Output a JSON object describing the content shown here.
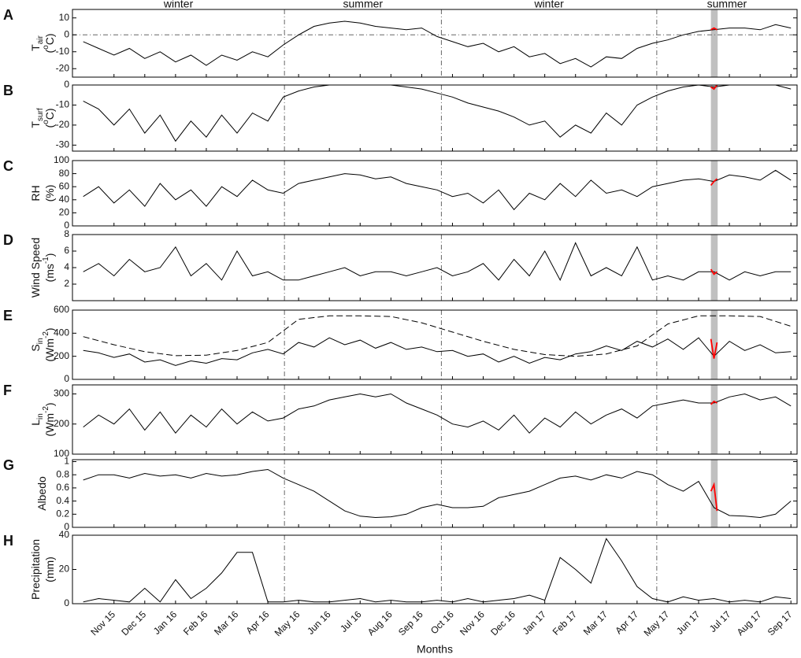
{
  "chart_data": {
    "type": "line",
    "xlabel": "Months",
    "xlim": [
      -0.35,
      23.2
    ],
    "xticks": [
      {
        "value": 1,
        "label": "Nov 15"
      },
      {
        "value": 2,
        "label": "Dec 15"
      },
      {
        "value": 3,
        "label": "Jan 16"
      },
      {
        "value": 4,
        "label": "Feb 16"
      },
      {
        "value": 5,
        "label": "Mar 16"
      },
      {
        "value": 6,
        "label": "Apr 16"
      },
      {
        "value": 7,
        "label": "May 16"
      },
      {
        "value": 8,
        "label": "Jun 16"
      },
      {
        "value": 9,
        "label": "Jul 16"
      },
      {
        "value": 10,
        "label": "Aug 16"
      },
      {
        "value": 11,
        "label": "Sep 16"
      },
      {
        "value": 12,
        "label": "Oct 16"
      },
      {
        "value": 13,
        "label": "Nov 16"
      },
      {
        "value": 14,
        "label": "Dec 16"
      },
      {
        "value": 15,
        "label": "Jan 17"
      },
      {
        "value": 16,
        "label": "Feb 17"
      },
      {
        "value": 17,
        "label": "Mar 17"
      },
      {
        "value": 18,
        "label": "Apr 17"
      },
      {
        "value": 19,
        "label": "May 17"
      },
      {
        "value": 20,
        "label": "Jun 17"
      },
      {
        "value": 21,
        "label": "Jul 17"
      },
      {
        "value": 22,
        "label": "Aug 17"
      },
      {
        "value": 23,
        "label": "Sep 17"
      }
    ],
    "season_lines": [
      6.54,
      11.64,
      18.64
    ],
    "seasons": [
      "winter",
      "summer",
      "winter",
      "summer"
    ],
    "highlight_x": [
      20.4,
      20.62
    ],
    "highlight_color": "#c0c0c0",
    "x": [
      0,
      0.5,
      1,
      1.5,
      2,
      2.5,
      3,
      3.5,
      4,
      4.5,
      5,
      5.5,
      6,
      6.5,
      7,
      7.5,
      8,
      8.5,
      9,
      9.5,
      10,
      10.5,
      11,
      11.5,
      12,
      12.5,
      13,
      13.5,
      14,
      14.5,
      15,
      15.5,
      16,
      16.5,
      17,
      17.5,
      18,
      18.5,
      19,
      19.5,
      20,
      20.5,
      21,
      21.5,
      22,
      22.5,
      23
    ],
    "panels": [
      {
        "label": "A",
        "ylabel": [
          {
            "text": "T"
          },
          {
            "text": "air",
            "pos": "sub"
          }
        ],
        "unit": [
          {
            "text": "("
          },
          {
            "text": "o",
            "pos": "sup"
          },
          {
            "text": "C)"
          }
        ],
        "ylim": [
          -25,
          15
        ],
        "yticks": [
          -20,
          -10,
          0,
          10
        ],
        "zero_line": true,
        "series": [
          {
            "color": "#000000",
            "values": [
              -4,
              -8,
              -12,
              -8,
              -14,
              -10,
              -16,
              -12,
              -18,
              -12,
              -15,
              -10,
              -13,
              -6,
              0,
              5,
              7,
              8,
              7,
              5,
              4,
              3,
              4,
              -1,
              -4,
              -7,
              -5,
              -10,
              -7,
              -13,
              -11,
              -17,
              -14,
              -19,
              -13,
              -14,
              -8,
              -5,
              -3,
              0,
              2,
              3,
              4,
              4,
              3,
              6,
              4
            ]
          },
          {
            "color": "#ff0000",
            "x": [
              20.4,
              20.5,
              20.6
            ],
            "values": [
              3,
              4,
              3
            ]
          }
        ]
      },
      {
        "label": "B",
        "ylabel": [
          {
            "text": "T"
          },
          {
            "text": "surf",
            "pos": "sub"
          }
        ],
        "unit": [
          {
            "text": "("
          },
          {
            "text": "o",
            "pos": "sup"
          },
          {
            "text": "C)"
          }
        ],
        "ylim": [
          -33,
          0
        ],
        "yticks": [
          -30,
          -20,
          -10,
          0
        ],
        "series": [
          {
            "color": "#000000",
            "values": [
              -8,
              -12,
              -20,
              -12,
              -24,
              -15,
              -28,
              -18,
              -26,
              -15,
              -24,
              -14,
              -18,
              -6,
              -3,
              -1,
              0,
              0,
              0,
              0,
              0,
              -1,
              -2,
              -4,
              -6,
              -9,
              -11,
              -13,
              -16,
              -20,
              -18,
              -26,
              -20,
              -24,
              -14,
              -20,
              -10,
              -6,
              -3,
              -1,
              0,
              -1,
              0,
              0,
              0,
              0,
              -2
            ]
          },
          {
            "color": "#ff0000",
            "x": [
              20.4,
              20.5,
              20.6
            ],
            "values": [
              -1,
              -2,
              0
            ]
          }
        ]
      },
      {
        "label": "C",
        "ylabel": [
          {
            "text": "RH"
          }
        ],
        "unit": [
          {
            "text": "(%)"
          }
        ],
        "ylim": [
          0,
          100
        ],
        "yticks": [
          0,
          20,
          40,
          60,
          80,
          100
        ],
        "series": [
          {
            "color": "#000000",
            "values": [
              45,
              60,
              35,
              55,
              30,
              65,
              40,
              55,
              30,
              60,
              45,
              70,
              55,
              50,
              65,
              70,
              75,
              80,
              78,
              72,
              75,
              65,
              60,
              55,
              45,
              50,
              35,
              55,
              25,
              50,
              40,
              65,
              45,
              70,
              50,
              55,
              45,
              60,
              65,
              70,
              72,
              68,
              78,
              75,
              70,
              85,
              70
            ]
          },
          {
            "color": "#ff0000",
            "x": [
              20.4,
              20.5,
              20.6
            ],
            "values": [
              62,
              68,
              72
            ]
          }
        ]
      },
      {
        "label": "D",
        "ylabel": [
          {
            "text": "Wind Speed"
          }
        ],
        "unit": [
          {
            "text": "(ms"
          },
          {
            "text": "-1",
            "pos": "sup"
          },
          {
            "text": ")"
          }
        ],
        "ylim": [
          0,
          8
        ],
        "yticks": [
          2,
          4,
          6,
          8
        ],
        "series": [
          {
            "color": "#000000",
            "values": [
              3.5,
              4.5,
              3,
              5,
              3.5,
              4,
              6.5,
              3,
              4.5,
              2.5,
              6,
              3,
              3.5,
              2.5,
              2.5,
              3,
              3.5,
              4,
              3,
              3.5,
              3.5,
              3,
              3.5,
              4,
              3,
              3.5,
              4.5,
              2.5,
              5,
              3,
              6,
              2.5,
              7,
              3,
              4,
              3,
              6.5,
              2.5,
              3,
              2.5,
              3.5,
              3.5,
              2.5,
              3.5,
              3,
              3.5,
              3.5
            ]
          },
          {
            "color": "#ff0000",
            "x": [
              20.4,
              20.5,
              20.6
            ],
            "values": [
              3.8,
              3.2,
              3.5
            ]
          }
        ]
      },
      {
        "label": "E",
        "ylabel": [
          {
            "text": "S"
          },
          {
            "text": "in",
            "pos": "sub"
          }
        ],
        "unit": [
          {
            "text": "(Wm"
          },
          {
            "text": "-2",
            "pos": "sup"
          },
          {
            "text": ")"
          }
        ],
        "ylim": [
          0,
          600
        ],
        "yticks": [
          0,
          200,
          400,
          600
        ],
        "series": [
          {
            "color": "#000000",
            "values": [
              250,
              230,
              190,
              220,
              150,
              170,
              120,
              160,
              140,
              180,
              170,
              230,
              260,
              220,
              320,
              280,
              360,
              300,
              340,
              270,
              320,
              260,
              280,
              240,
              250,
              200,
              220,
              150,
              200,
              140,
              190,
              170,
              220,
              240,
              290,
              250,
              330,
              280,
              350,
              260,
              360,
              200,
              330,
              250,
              300,
              230,
              240
            ]
          },
          {
            "color": "#000000",
            "dash": true,
            "x": [
              0,
              1,
              2,
              3,
              4,
              5,
              6,
              7,
              8,
              9,
              10,
              11,
              12,
              13,
              14,
              15,
              16,
              17,
              18,
              19,
              20,
              21,
              22,
              23
            ],
            "values": [
              370,
              300,
              240,
              205,
              210,
              250,
              320,
              520,
              550,
              550,
              545,
              490,
              410,
              330,
              260,
              215,
              200,
              220,
              290,
              480,
              550,
              550,
              545,
              460
            ]
          },
          {
            "color": "#ff0000",
            "x": [
              20.4,
              20.5,
              20.6
            ],
            "values": [
              350,
              180,
              320
            ]
          }
        ]
      },
      {
        "label": "F",
        "ylabel": [
          {
            "text": "L"
          },
          {
            "text": "in",
            "pos": "sub"
          }
        ],
        "unit": [
          {
            "text": "(Wm"
          },
          {
            "text": "-2",
            "pos": "sup"
          },
          {
            "text": ")"
          }
        ],
        "ylim": [
          100,
          330
        ],
        "yticks": [
          100,
          200,
          300
        ],
        "series": [
          {
            "color": "#000000",
            "values": [
              190,
              230,
              200,
              250,
              180,
              240,
              170,
              230,
              190,
              250,
              200,
              240,
              210,
              220,
              250,
              260,
              280,
              290,
              300,
              290,
              300,
              270,
              250,
              230,
              200,
              190,
              210,
              180,
              230,
              170,
              220,
              190,
              240,
              200,
              230,
              250,
              220,
              260,
              270,
              280,
              270,
              270,
              290,
              300,
              280,
              290,
              260
            ]
          },
          {
            "color": "#ff0000",
            "x": [
              20.4,
              20.5,
              20.6
            ],
            "values": [
              265,
              275,
              270
            ]
          }
        ]
      },
      {
        "label": "G",
        "ylabel": [
          {
            "text": "Albedo"
          }
        ],
        "unit": [],
        "ylim": [
          0,
          1.03
        ],
        "yticks": [
          0,
          0.2,
          0.4,
          0.6,
          0.8,
          1
        ],
        "series": [
          {
            "color": "#000000",
            "values": [
              0.72,
              0.8,
              0.8,
              0.75,
              0.82,
              0.78,
              0.8,
              0.75,
              0.82,
              0.78,
              0.8,
              0.85,
              0.88,
              0.75,
              0.65,
              0.55,
              0.4,
              0.25,
              0.17,
              0.15,
              0.16,
              0.2,
              0.3,
              0.35,
              0.3,
              0.3,
              0.32,
              0.45,
              0.5,
              0.55,
              0.65,
              0.75,
              0.78,
              0.72,
              0.8,
              0.75,
              0.85,
              0.8,
              0.65,
              0.55,
              0.7,
              0.3,
              0.18,
              0.17,
              0.15,
              0.2,
              0.4
            ]
          },
          {
            "color": "#ff0000",
            "x": [
              20.4,
              20.5,
              20.6
            ],
            "values": [
              0.55,
              0.65,
              0.25
            ]
          }
        ]
      },
      {
        "label": "H",
        "ylabel": [
          {
            "text": "Precipitation"
          }
        ],
        "unit": [
          {
            "text": "(mm)"
          }
        ],
        "ylim": [
          0,
          40
        ],
        "yticks": [
          0,
          20,
          40
        ],
        "series": [
          {
            "color": "#000000",
            "values": [
              1,
              3,
              2,
              1,
              9,
              1,
              14,
              3,
              9,
              18,
              30,
              30,
              1,
              1,
              2,
              1,
              1,
              2,
              3,
              1,
              2,
              1,
              1,
              2,
              1,
              3,
              1,
              2,
              3,
              5,
              2,
              27,
              20,
              12,
              38,
              25,
              10,
              3,
              1,
              4,
              2,
              3,
              1,
              2,
              1,
              4,
              3
            ]
          }
        ]
      }
    ]
  }
}
